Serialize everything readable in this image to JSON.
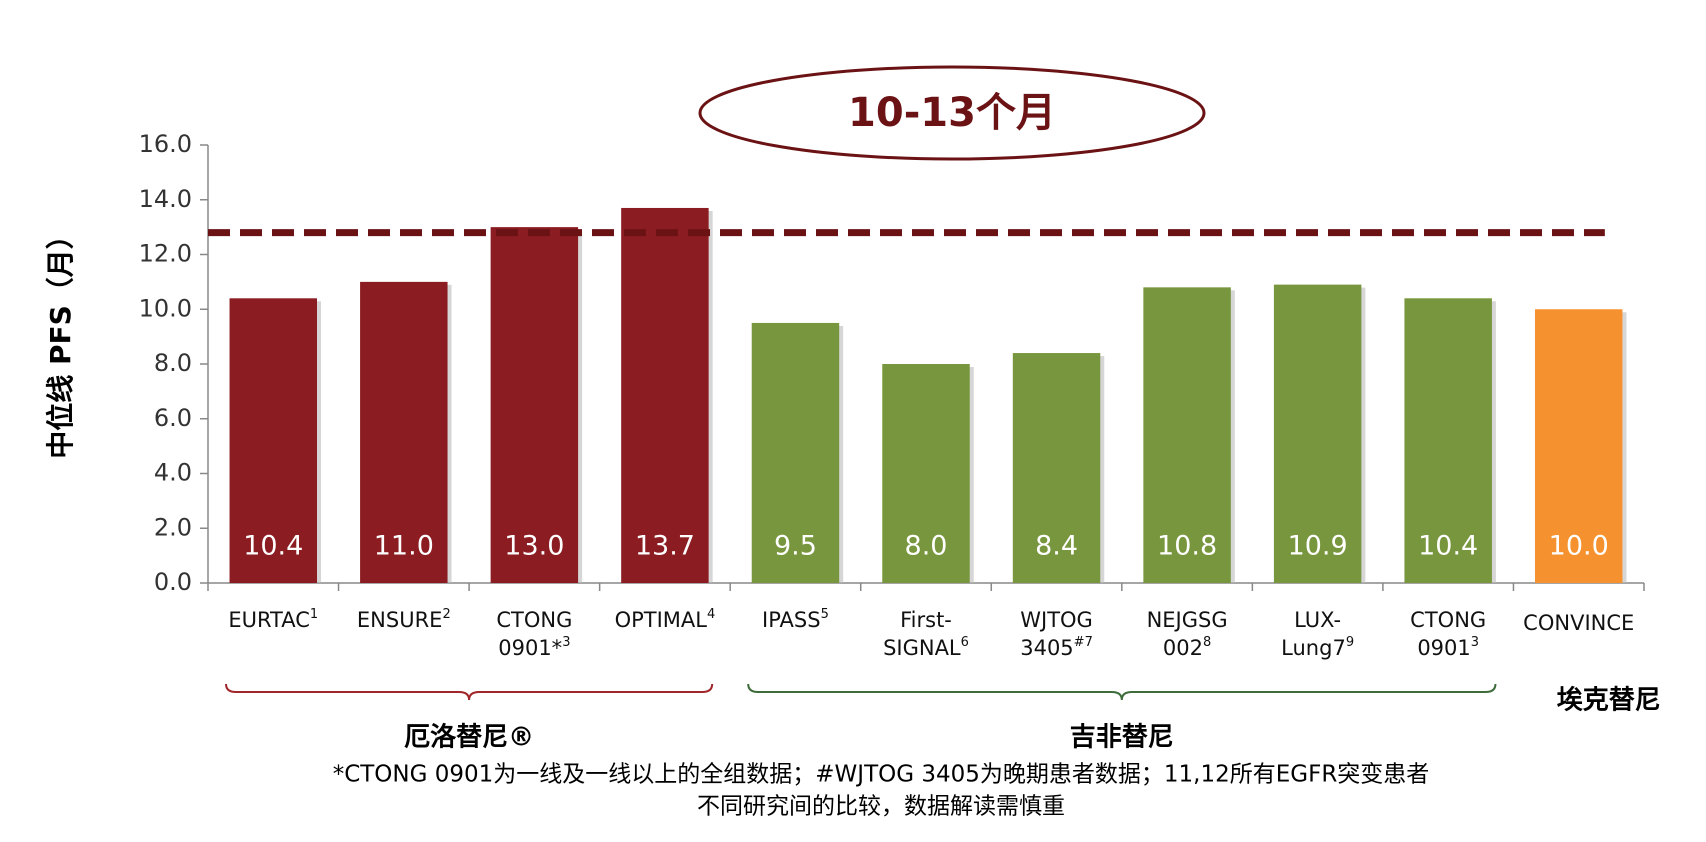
{
  "chart_data": {
    "type": "bar",
    "ylabel": "中位线 PFS（月）",
    "annotation": "10-13个月",
    "categories": [
      "EURTAC",
      "ENSURE",
      "CTONG\n0901*",
      "OPTIMAL",
      "IPASS",
      "First-\nSIGNAL",
      "WJTOG\n3405",
      "NEJGSG\n002",
      "LUX-\nLung7",
      "CTONG\n0901",
      "CONVINCE"
    ],
    "superscripts": [
      "1",
      "2",
      "3",
      "4",
      "5",
      "6",
      "#7",
      "8",
      "9",
      "3",
      null
    ],
    "values": [
      10.4,
      11.0,
      13.0,
      13.7,
      9.5,
      8.0,
      8.4,
      10.8,
      10.9,
      10.4,
      10.0
    ],
    "value_labels": [
      "10.4",
      "11.0",
      "13.0",
      "13.7",
      "9.5",
      "8.0",
      "8.4",
      "10.8",
      "10.9",
      "10.4",
      "10.0"
    ],
    "colors": [
      "#8b1c21",
      "#8b1c21",
      "#8b1c21",
      "#8b1c21",
      "#77963d",
      "#77963d",
      "#77963d",
      "#77963d",
      "#77963d",
      "#77963d",
      "#f5922f"
    ],
    "reference_line": 12.8,
    "reference_color": "#6b1214",
    "ylim": [
      0,
      16
    ],
    "yticks": [
      {
        "value": 0,
        "label": "0.0"
      },
      {
        "value": 2,
        "label": "2.0"
      },
      {
        "value": 4,
        "label": "4.0"
      },
      {
        "value": 6,
        "label": "6.0"
      },
      {
        "value": 8,
        "label": "8.0"
      },
      {
        "value": 10,
        "label": "10.0"
      },
      {
        "value": 12,
        "label": "12.0"
      },
      {
        "value": 14,
        "label": "14.0"
      },
      {
        "value": 16,
        "label": "16.0"
      }
    ],
    "groups": [
      {
        "label": "厄洛替尼®",
        "start": 0,
        "end": 3,
        "color": "#a0262b",
        "bracket": true
      },
      {
        "label": "吉非替尼",
        "start": 4,
        "end": 9,
        "color": "#3d6b3a",
        "bracket": true
      },
      {
        "label": "埃克替尼",
        "start": 10,
        "end": 10,
        "color": "#000000",
        "bracket": false
      }
    ],
    "footnote": [
      "*CTONG 0901为一线及一线以上的全组数据；#WJTOG 3405为晚期患者数据；11,12所有EGFR突变患者",
      "不同研究间的比较，数据解读需慎重"
    ]
  }
}
